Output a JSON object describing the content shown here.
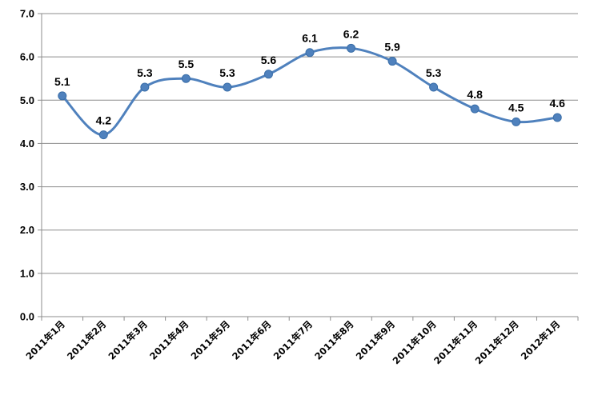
{
  "chart_data": {
    "type": "line",
    "title": "",
    "xlabel": "",
    "ylabel": "",
    "categories": [
      "2011年1月",
      "2011年2月",
      "2011年3月",
      "2011年4月",
      "2011年5月",
      "2011年6月",
      "2011年7月",
      "2011年8月",
      "2011年9月",
      "2011年10月",
      "2011年11月",
      "2011年12月",
      "2012年1月"
    ],
    "series": [
      {
        "values": [
          5.1,
          4.2,
          5.3,
          5.5,
          5.3,
          5.6,
          6.1,
          6.2,
          5.9,
          5.3,
          4.8,
          4.5,
          4.6
        ]
      }
    ],
    "data_labels": [
      "5.1",
      "4.2",
      "5.3",
      "5.5",
      "5.3",
      "5.6",
      "6.1",
      "6.2",
      "5.9",
      "5.3",
      "4.8",
      "4.5",
      "4.6"
    ],
    "ylim": [
      0,
      7
    ],
    "yticks": [
      0,
      1,
      2,
      3,
      4,
      5,
      6,
      7
    ],
    "ytick_labels": [
      "0.0",
      "1.0",
      "2.0",
      "3.0",
      "4.0",
      "5.0",
      "6.0",
      "7.0"
    ],
    "grid": true,
    "smooth": true,
    "legend": "none",
    "colors": {
      "line": "#4f81bd",
      "marker": "#4f81bd",
      "grid": "#8c8c8c",
      "axis": "#8c8c8c"
    }
  }
}
